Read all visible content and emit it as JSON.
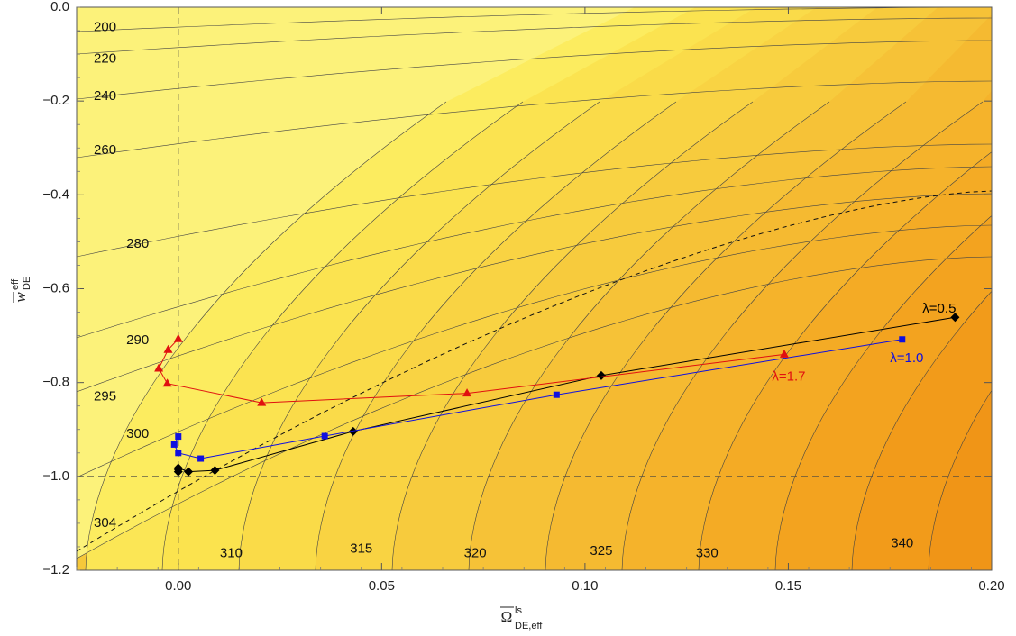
{
  "chart_data": {
    "type": "line",
    "xlim": [
      -0.025,
      0.2
    ],
    "ylim": [
      -1.2,
      0.0
    ],
    "x_ticks": [
      {
        "value": 0.0,
        "label": "0.00"
      },
      {
        "value": 0.05,
        "label": "0.05"
      },
      {
        "value": 0.1,
        "label": "0.10"
      },
      {
        "value": 0.15,
        "label": "0.15"
      },
      {
        "value": 0.2,
        "label": "0.20"
      }
    ],
    "y_ticks": [
      {
        "value": 0.0,
        "label": "0.0"
      },
      {
        "value": -0.2,
        "label": "−0.2"
      },
      {
        "value": -0.4,
        "label": "−0.4"
      },
      {
        "value": -0.6,
        "label": "−0.6"
      },
      {
        "value": -0.8,
        "label": "−0.8"
      },
      {
        "value": -1.0,
        "label": "−1.0"
      },
      {
        "value": -1.2,
        "label": "−1.2"
      }
    ],
    "xlabel": {
      "main": "Ω",
      "sub": "DE,eff",
      "sup": "ls"
    },
    "ylabel": {
      "main": "w",
      "sub": "DE",
      "sup": "eff"
    },
    "reference_lines": {
      "vertical_x": 0.0,
      "horizontal_y": -1.0
    },
    "contour_labels": [
      {
        "text": "200",
        "x": -0.018,
        "y": -0.043
      },
      {
        "text": "220",
        "x": -0.018,
        "y": -0.11
      },
      {
        "text": "240",
        "x": -0.018,
        "y": -0.19
      },
      {
        "text": "260",
        "x": -0.018,
        "y": -0.305
      },
      {
        "text": "280",
        "x": -0.01,
        "y": -0.505
      },
      {
        "text": "290",
        "x": -0.01,
        "y": -0.71
      },
      {
        "text": "295",
        "x": -0.018,
        "y": -0.83
      },
      {
        "text": "300",
        "x": -0.01,
        "y": -0.91
      },
      {
        "text": "304",
        "x": -0.018,
        "y": -1.1
      },
      {
        "text": "310",
        "x": 0.013,
        "y": -1.165
      },
      {
        "text": "315",
        "x": 0.045,
        "y": -1.155
      },
      {
        "text": "320",
        "x": 0.073,
        "y": -1.165
      },
      {
        "text": "325",
        "x": 0.104,
        "y": -1.16
      },
      {
        "text": "330",
        "x": 0.13,
        "y": -1.165
      },
      {
        "text": "340",
        "x": 0.178,
        "y": -1.143
      }
    ],
    "series": [
      {
        "name": "λ=0.5",
        "color": "#000000",
        "marker": "diamond",
        "x": [
          0.0,
          0.0,
          0.0,
          0.0025,
          0.009,
          0.043,
          0.104,
          0.191
        ],
        "y": [
          -0.985,
          -0.99,
          -0.982,
          -0.99,
          -0.987,
          -0.904,
          -0.785,
          -0.661
        ]
      },
      {
        "name": "λ=1.0",
        "color": "#1010e0",
        "marker": "square",
        "x": [
          0.0,
          -0.001,
          0.0,
          0.0055,
          0.036,
          0.093,
          0.178
        ],
        "y": [
          -0.915,
          -0.932,
          -0.95,
          -0.962,
          -0.914,
          -0.826,
          -0.708
        ]
      },
      {
        "name": "λ=1.7",
        "color": "#e01010",
        "marker": "triangle",
        "x": [
          0.0,
          -0.0025,
          -0.0048,
          -0.0027,
          0.0205,
          0.071,
          0.149
        ],
        "y": [
          -0.707,
          -0.73,
          -0.77,
          -0.802,
          -0.843,
          -0.823,
          -0.74
        ]
      }
    ],
    "series_labels": [
      {
        "text": "λ=0.5",
        "color": "#000000",
        "x": 0.183,
        "y": -0.643
      },
      {
        "text": "λ=1.0",
        "color": "#1010e0",
        "x": 0.175,
        "y": -0.749
      },
      {
        "text": "λ=1.7",
        "color": "#e01010",
        "x": 0.146,
        "y": -0.788
      }
    ]
  }
}
